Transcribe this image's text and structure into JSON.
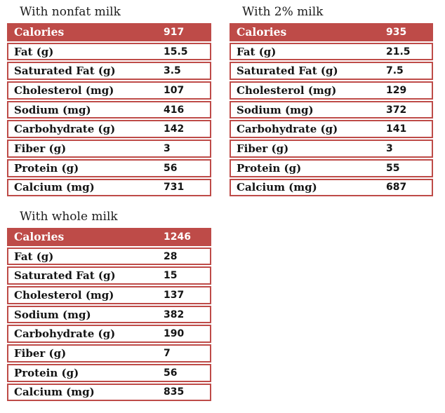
{
  "accent_color": "#be4b48",
  "body_text_color": "#141414",
  "header_text_color": "#ffffff",
  "chart_data": [
    {
      "type": "table",
      "title": "With nonfat milk",
      "header_row": {
        "label": "Calories",
        "value": 917
      },
      "rows": [
        {
          "label": "Fat (g)",
          "value": 15.5
        },
        {
          "label": "Saturated Fat (g)",
          "value": 3.5
        },
        {
          "label": "Cholesterol (mg)",
          "value": 107
        },
        {
          "label": "Sodium (mg)",
          "value": 416
        },
        {
          "label": "Carbohydrate (g)",
          "value": 142
        },
        {
          "label": "Fiber (g)",
          "value": 3
        },
        {
          "label": "Protein (g)",
          "value": 56
        },
        {
          "label": "Calcium (mg)",
          "value": 731
        }
      ]
    },
    {
      "type": "table",
      "title": "With 2% milk",
      "header_row": {
        "label": "Calories",
        "value": 935
      },
      "rows": [
        {
          "label": "Fat (g)",
          "value": 21.5
        },
        {
          "label": "Saturated Fat (g)",
          "value": 7.5
        },
        {
          "label": "Cholesterol (mg)",
          "value": 129
        },
        {
          "label": "Sodium (mg)",
          "value": 372
        },
        {
          "label": "Carbohydrate (g)",
          "value": 141
        },
        {
          "label": "Fiber (g)",
          "value": 3
        },
        {
          "label": "Protein (g)",
          "value": 55
        },
        {
          "label": "Calcium (mg)",
          "value": 687
        }
      ]
    },
    {
      "type": "table",
      "title": "With whole milk",
      "header_row": {
        "label": "Calories",
        "value": 1246
      },
      "rows": [
        {
          "label": "Fat (g)",
          "value": 28
        },
        {
          "label": "Saturated Fat (g)",
          "value": 15
        },
        {
          "label": "Cholesterol (mg)",
          "value": 137
        },
        {
          "label": "Sodium (mg)",
          "value": 382
        },
        {
          "label": "Carbohydrate (g)",
          "value": 190
        },
        {
          "label": "Fiber (g)",
          "value": 7
        },
        {
          "label": "Protein (g)",
          "value": 56
        },
        {
          "label": "Calcium (mg)",
          "value": 835
        }
      ]
    }
  ]
}
